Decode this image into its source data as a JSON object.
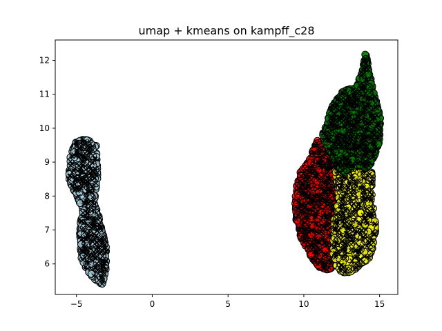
{
  "chart_data": {
    "type": "scatter",
    "title": "umap + kmeans on kampff_c28",
    "xlabel": "",
    "ylabel": "",
    "xlim": [
      -6.4,
      16.2
    ],
    "ylim": [
      5.1,
      12.6
    ],
    "x_ticks": [
      -5,
      0,
      5,
      10,
      15
    ],
    "x_tick_labels": [
      "−5",
      "0",
      "5",
      "10",
      "15"
    ],
    "y_ticks": [
      6,
      7,
      8,
      9,
      10,
      11,
      12
    ],
    "y_tick_labels": [
      "6",
      "7",
      "8",
      "9",
      "10",
      "11",
      "12"
    ],
    "grid": false,
    "legend": "none",
    "marker_edge_color": "#000000",
    "overlay_marker": "x",
    "clusters": [
      {
        "color": "#add8e6",
        "description_x_range": [
          -5.5,
          -3.0
        ],
        "description_y_range": [
          5.4,
          9.7
        ],
        "outline": [
          [
            -5.0,
            9.65
          ],
          [
            -4.4,
            9.7
          ],
          [
            -3.7,
            9.5
          ],
          [
            -3.6,
            8.6
          ],
          [
            -3.8,
            7.8
          ],
          [
            -3.4,
            7.2
          ],
          [
            -3.0,
            6.4
          ],
          [
            -3.0,
            5.9
          ],
          [
            -3.3,
            5.4
          ],
          [
            -3.7,
            5.5
          ],
          [
            -4.3,
            5.8
          ],
          [
            -4.7,
            6.2
          ],
          [
            -4.8,
            7.0
          ],
          [
            -4.6,
            7.6
          ],
          [
            -5.0,
            8.0
          ],
          [
            -5.5,
            8.5
          ],
          [
            -5.4,
            9.2
          ]
        ]
      },
      {
        "color": "#ff0000",
        "outline": [
          [
            9.4,
            7.8
          ],
          [
            9.6,
            8.6
          ],
          [
            10.3,
            9.0
          ],
          [
            10.8,
            9.6
          ],
          [
            11.3,
            9.75
          ],
          [
            12.0,
            9.1
          ],
          [
            12.5,
            8.8
          ],
          [
            12.3,
            8.0
          ],
          [
            12.0,
            7.3
          ],
          [
            12.0,
            6.3
          ],
          [
            11.8,
            5.8
          ],
          [
            11.0,
            5.9
          ],
          [
            10.5,
            6.2
          ],
          [
            9.8,
            6.8
          ],
          [
            9.5,
            7.3
          ]
        ]
      },
      {
        "color": "#ffff00",
        "outline": [
          [
            12.0,
            8.8
          ],
          [
            12.7,
            8.7
          ],
          [
            13.4,
            8.9
          ],
          [
            14.5,
            8.8
          ],
          [
            14.5,
            7.9
          ],
          [
            14.8,
            7.0
          ],
          [
            14.4,
            6.2
          ],
          [
            13.6,
            5.9
          ],
          [
            12.8,
            5.7
          ],
          [
            12.2,
            5.85
          ],
          [
            11.9,
            6.3
          ],
          [
            12.0,
            7.3
          ],
          [
            12.3,
            8.0
          ]
        ]
      },
      {
        "color": "#008000",
        "outline": [
          [
            11.2,
            9.75
          ],
          [
            11.6,
            10.3
          ],
          [
            12.0,
            10.8
          ],
          [
            12.6,
            11.1
          ],
          [
            13.4,
            11.2
          ],
          [
            13.8,
            11.6
          ],
          [
            14.1,
            12.3
          ],
          [
            14.3,
            11.7
          ],
          [
            14.7,
            10.9
          ],
          [
            15.1,
            10.3
          ],
          [
            15.0,
            9.6
          ],
          [
            14.6,
            9.1
          ],
          [
            14.3,
            8.8
          ],
          [
            13.4,
            8.9
          ],
          [
            12.7,
            8.7
          ],
          [
            12.2,
            8.9
          ],
          [
            11.9,
            9.2
          ]
        ]
      }
    ]
  }
}
